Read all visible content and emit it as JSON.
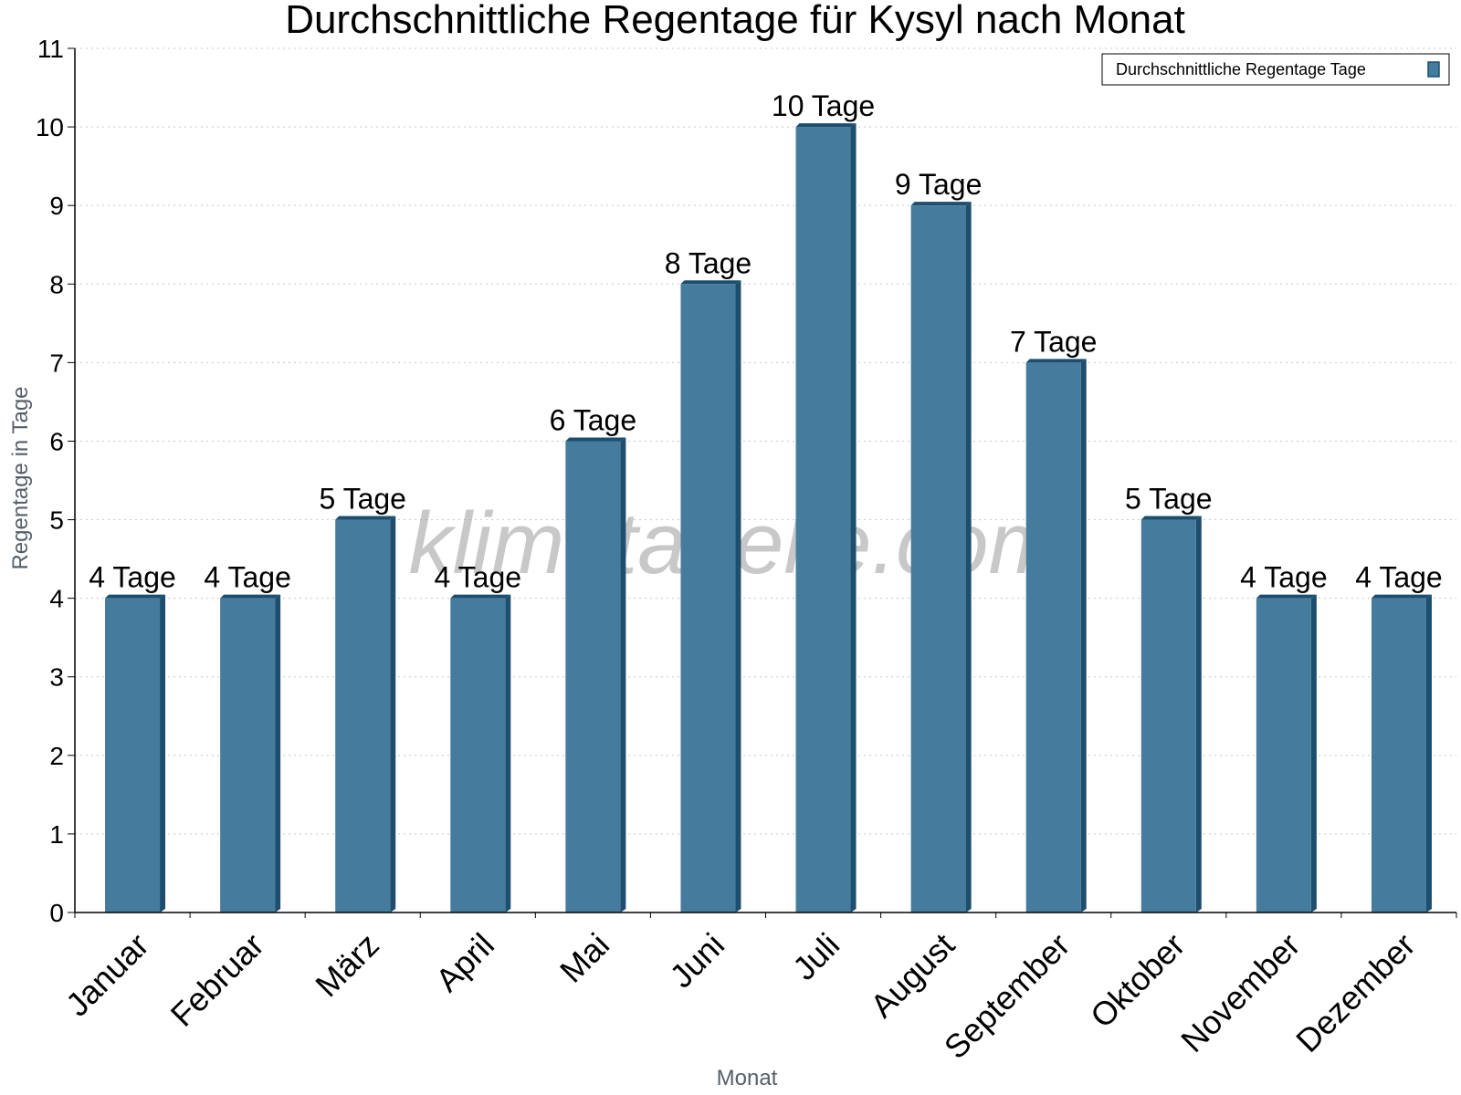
{
  "chart_data": {
    "type": "bar",
    "title": "Durchschnittliche Regentage für Kysyl nach Monat",
    "xlabel": "Monat",
    "ylabel": "Regentage in Tage",
    "categories": [
      "Januar",
      "Februar",
      "März",
      "April",
      "Mai",
      "Juni",
      "Juli",
      "August",
      "September",
      "Oktober",
      "November",
      "Dezember"
    ],
    "series": [
      {
        "name": "Durchschnittliche Regentage Tage",
        "values": [
          4,
          4,
          5,
          4,
          6,
          8,
          10,
          9,
          7,
          5,
          4,
          4
        ],
        "data_labels": [
          "4 Tage",
          "4 Tage",
          "5 Tage",
          "4 Tage",
          "6 Tage",
          "8 Tage",
          "10 Tage",
          "9 Tage",
          "7 Tage",
          "5 Tage",
          "4 Tage",
          "4 Tage"
        ]
      }
    ],
    "ylim": [
      0,
      11
    ],
    "yticks": [
      "0",
      "1",
      "2",
      "3",
      "4",
      "5",
      "6",
      "7",
      "8",
      "9",
      "10",
      "11"
    ],
    "grid": true,
    "legend_position": "top-right",
    "bar_color": "#457b9d",
    "bar_side_color": "#1d4e6e",
    "grid_color": "#c8c8c8",
    "watermark": "klimatabelle.com"
  }
}
